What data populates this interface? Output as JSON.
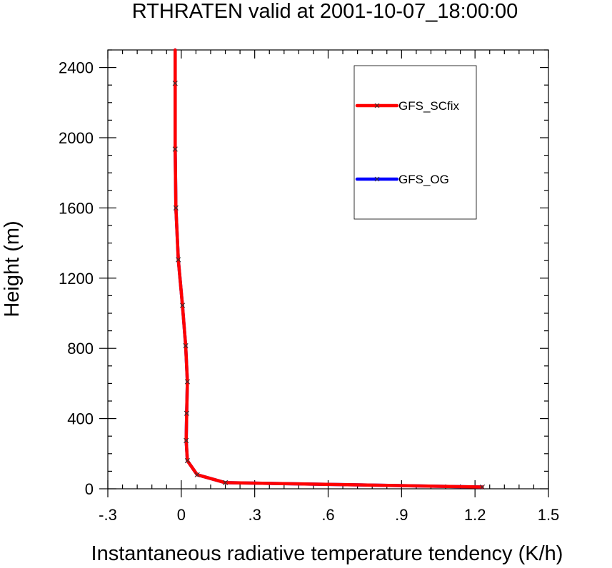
{
  "chart_data": {
    "type": "line",
    "title": "RTHRATEN valid at 2001-10-07_18:00:00",
    "xlabel": "Instantaneous radiative temperature tendency (K/h)",
    "ylabel": "Height (m)",
    "xlim": [
      -0.3,
      1.5
    ],
    "ylim": [
      0,
      2500
    ],
    "xticks": [
      -0.3,
      0,
      0.3,
      0.6,
      0.9,
      1.2,
      1.5
    ],
    "xtick_labels": [
      "-.3",
      "0",
      ".3",
      ".6",
      ".9",
      "1.2",
      "1.5"
    ],
    "yticks": [
      0,
      400,
      800,
      1200,
      1600,
      2000,
      2400
    ],
    "ytick_labels": [
      "0",
      "400",
      "800",
      "1200",
      "1600",
      "2000",
      "2400"
    ],
    "grid": false,
    "legend_position": "top-right",
    "series": [
      {
        "name": "GFS_SCfix",
        "color": "#ff0000",
        "marker": "x",
        "x": [
          1.23,
          0.18,
          0.065,
          0.025,
          0.02,
          0.022,
          0.025,
          0.018,
          0.005,
          -0.012,
          -0.022,
          -0.025,
          -0.025,
          -0.025
        ],
        "y": [
          10,
          35,
          80,
          160,
          275,
          430,
          610,
          815,
          1045,
          1305,
          1600,
          1935,
          2310,
          2500
        ]
      },
      {
        "name": "GFS_OG",
        "color": "#0000ff",
        "marker": "x",
        "x": [
          1.23,
          0.18,
          0.065,
          0.025,
          0.02,
          0.022,
          0.025,
          0.018,
          0.005,
          -0.012,
          -0.022,
          -0.025,
          -0.025,
          -0.025
        ],
        "y": [
          10,
          35,
          80,
          160,
          275,
          430,
          610,
          815,
          1045,
          1305,
          1600,
          1935,
          2310,
          2500
        ]
      }
    ]
  }
}
